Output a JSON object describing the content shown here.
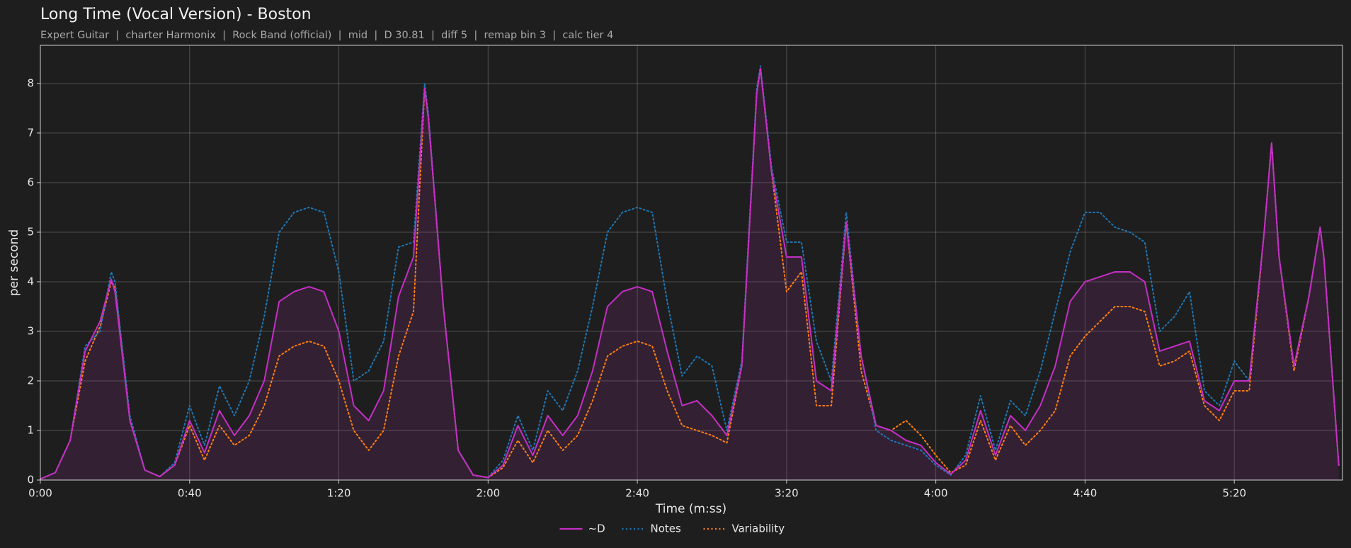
{
  "chart_data": {
    "type": "line",
    "title": "Long Time (Vocal Version) - Boston",
    "subtitle": "Expert Guitar  |  charter Harmonix  |  Rock Band (official)  |  mid  |  D 30.81  |  diff 5  |  remap bin 3  |  calc tier 4",
    "x_label": "Time (m:ss)",
    "y_label": "per second",
    "x": [
      0,
      4,
      8,
      12,
      16,
      19,
      20,
      24,
      28,
      32,
      36,
      40,
      44,
      48,
      52,
      56,
      60,
      64,
      68,
      72,
      76,
      80,
      84,
      88,
      92,
      96,
      100,
      103,
      104,
      108,
      112,
      116,
      120,
      124,
      128,
      132,
      136,
      140,
      144,
      148,
      152,
      156,
      160,
      164,
      168,
      172,
      176,
      180,
      184,
      188,
      192,
      193,
      196,
      200,
      204,
      208,
      212,
      216,
      220,
      224,
      228,
      232,
      236,
      240,
      244,
      248,
      252,
      256,
      260,
      264,
      268,
      272,
      276,
      280,
      284,
      288,
      292,
      296,
      300,
      304,
      308,
      312,
      316,
      320,
      324,
      328,
      330,
      332,
      336,
      340,
      343,
      344,
      348
    ],
    "series": [
      {
        "name": "~D",
        "color": "#c42fc4",
        "dash": "solid",
        "fill": true,
        "values": [
          0.02,
          0.15,
          0.8,
          2.6,
          3.2,
          4.05,
          3.8,
          1.2,
          0.2,
          0.07,
          0.3,
          1.2,
          0.55,
          1.4,
          0.9,
          1.3,
          2.0,
          3.6,
          3.8,
          3.9,
          3.8,
          3.0,
          1.5,
          1.2,
          1.8,
          3.7,
          4.5,
          7.9,
          7.3,
          3.5,
          0.6,
          0.1,
          0.05,
          0.3,
          1.1,
          0.5,
          1.3,
          0.9,
          1.3,
          2.2,
          3.5,
          3.8,
          3.9,
          3.8,
          2.6,
          1.5,
          1.6,
          1.3,
          0.9,
          2.3,
          7.8,
          8.3,
          6.2,
          4.5,
          4.5,
          2.0,
          1.8,
          5.2,
          2.5,
          1.1,
          1.0,
          0.8,
          0.7,
          0.35,
          0.12,
          0.4,
          1.4,
          0.5,
          1.3,
          1.0,
          1.5,
          2.3,
          3.6,
          4.0,
          4.1,
          4.2,
          4.2,
          4.0,
          2.6,
          2.7,
          2.8,
          1.6,
          1.4,
          2.0,
          2.0,
          5.0,
          6.8,
          4.5,
          2.3,
          3.7,
          5.1,
          4.5,
          0.3
        ]
      },
      {
        "name": "Notes",
        "color": "#1f77b4",
        "dash": "dotted",
        "fill": false,
        "values": [
          0.02,
          0.15,
          0.8,
          2.7,
          3.0,
          4.2,
          4.0,
          1.3,
          0.2,
          0.07,
          0.35,
          1.5,
          0.7,
          1.9,
          1.3,
          2.0,
          3.3,
          5.0,
          5.4,
          5.5,
          5.4,
          4.2,
          2.0,
          2.2,
          2.8,
          4.7,
          4.8,
          8.0,
          7.4,
          3.5,
          0.6,
          0.1,
          0.05,
          0.4,
          1.3,
          0.6,
          1.8,
          1.4,
          2.2,
          3.5,
          5.0,
          5.4,
          5.5,
          5.4,
          3.6,
          2.1,
          2.5,
          2.3,
          1.0,
          2.4,
          7.9,
          8.35,
          6.3,
          4.8,
          4.8,
          2.8,
          2.0,
          5.4,
          2.5,
          1.0,
          0.8,
          0.7,
          0.6,
          0.3,
          0.1,
          0.5,
          1.7,
          0.6,
          1.6,
          1.3,
          2.2,
          3.4,
          4.6,
          5.4,
          5.4,
          5.1,
          5.0,
          4.8,
          3.0,
          3.3,
          3.8,
          1.8,
          1.5,
          2.4,
          2.0,
          5.0,
          6.8,
          4.5,
          2.3,
          3.7,
          5.1,
          4.5,
          0.3
        ]
      },
      {
        "name": "Variability",
        "color": "#ff7f0e",
        "dash": "dotted",
        "fill": false,
        "values": [
          0.02,
          0.15,
          0.8,
          2.4,
          3.1,
          4.0,
          3.9,
          1.2,
          0.2,
          0.07,
          0.3,
          1.1,
          0.4,
          1.1,
          0.7,
          0.9,
          1.5,
          2.5,
          2.7,
          2.8,
          2.7,
          2.0,
          1.0,
          0.6,
          1.0,
          2.5,
          3.4,
          7.9,
          7.3,
          3.5,
          0.6,
          0.1,
          0.05,
          0.25,
          0.8,
          0.35,
          1.0,
          0.6,
          0.9,
          1.6,
          2.5,
          2.7,
          2.8,
          2.7,
          1.8,
          1.1,
          1.0,
          0.9,
          0.75,
          2.3,
          7.8,
          8.3,
          6.2,
          3.8,
          4.2,
          1.5,
          1.5,
          5.2,
          2.2,
          1.1,
          1.0,
          1.2,
          0.9,
          0.5,
          0.15,
          0.3,
          1.2,
          0.4,
          1.1,
          0.7,
          1.0,
          1.4,
          2.5,
          2.9,
          3.2,
          3.5,
          3.5,
          3.4,
          2.3,
          2.4,
          2.6,
          1.5,
          1.2,
          1.8,
          1.8,
          5.0,
          6.8,
          4.5,
          2.2,
          3.7,
          5.1,
          4.5,
          0.3
        ]
      }
    ],
    "xlim": [
      0,
      349
    ],
    "xticks": [
      {
        "value": 0,
        "label": "0:00"
      },
      {
        "value": 40,
        "label": "0:40"
      },
      {
        "value": 80,
        "label": "1:20"
      },
      {
        "value": 120,
        "label": "2:00"
      },
      {
        "value": 160,
        "label": "2:40"
      },
      {
        "value": 200,
        "label": "3:20"
      },
      {
        "value": 240,
        "label": "4:00"
      },
      {
        "value": 280,
        "label": "4:40"
      },
      {
        "value": 320,
        "label": "5:20"
      }
    ],
    "ylim": [
      0,
      8.77
    ],
    "yticks": [
      0,
      1,
      2,
      3,
      4,
      5,
      6,
      7,
      8
    ],
    "grid": true,
    "legend": "bottom"
  }
}
